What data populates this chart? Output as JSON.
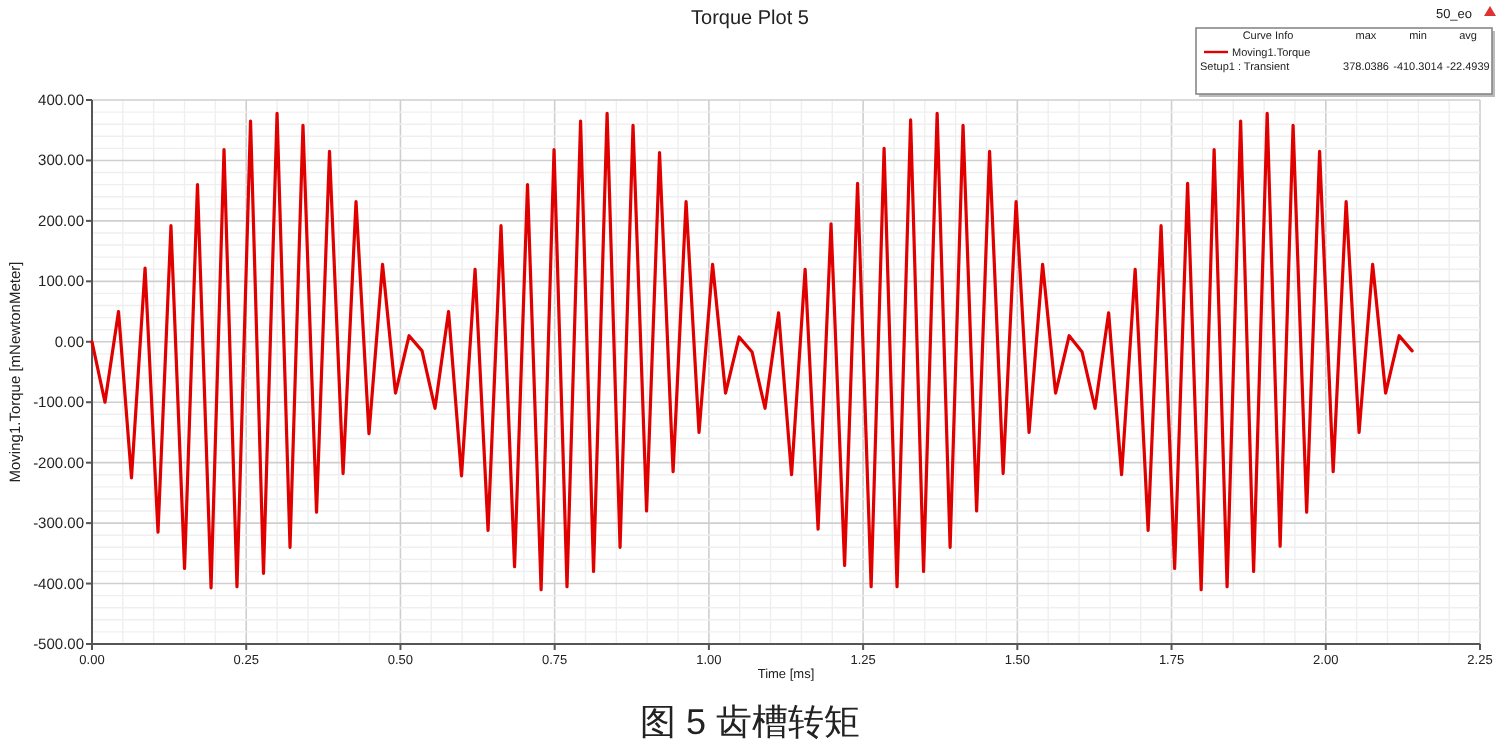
{
  "chart_data": {
    "type": "line",
    "title": "Torque Plot 5",
    "xlabel": "Time [ms]",
    "ylabel": "Moving1.Torque [mNewtonMeter]",
    "xlim": [
      0,
      2.25
    ],
    "ylim": [
      -500,
      400
    ],
    "xticks": [
      {
        "value": 0,
        "label": "0.00"
      },
      {
        "value": 0.25,
        "label": "0.25"
      },
      {
        "value": 0.5,
        "label": "0.50"
      },
      {
        "value": 0.75,
        "label": "0.75"
      },
      {
        "value": 1,
        "label": "1.00"
      },
      {
        "value": 1.25,
        "label": "1.25"
      },
      {
        "value": 1.5,
        "label": "1.50"
      },
      {
        "value": 1.75,
        "label": "1.75"
      },
      {
        "value": 2,
        "label": "2.00"
      },
      {
        "value": 2.25,
        "label": "2.25"
      }
    ],
    "yticks": [
      {
        "value": -500,
        "label": "-500.00"
      },
      {
        "value": -400,
        "label": "-400.00"
      },
      {
        "value": -300,
        "label": "-300.00"
      },
      {
        "value": -200,
        "label": "-200.00"
      },
      {
        "value": -100,
        "label": "-100.00"
      },
      {
        "value": 0,
        "label": "0.00"
      },
      {
        "value": 100,
        "label": "100.00"
      },
      {
        "value": 200,
        "label": "200.00"
      },
      {
        "value": 300,
        "label": "300.00"
      },
      {
        "value": 400,
        "label": "400.00"
      }
    ],
    "grid": true,
    "legend": "top right",
    "marker": "none",
    "line_style": "solid",
    "annotations": [
      "50_eo",
      "Curve Info",
      "max",
      "min",
      "avg",
      "Setup1 : Transient",
      "378.0386",
      "-410.3014",
      "-22.4939",
      "图 5 齿槽转矩"
    ],
    "series": [
      {
        "name": "Moving1.Torque",
        "color": "#e00000",
        "x": [
          0,
          0.021,
          0.043,
          0.064,
          0.086,
          0.107,
          0.128,
          0.15,
          0.171,
          0.193,
          0.214,
          0.235,
          0.257,
          0.278,
          0.3,
          0.321,
          0.342,
          0.364,
          0.385,
          0.407,
          0.428,
          0.449,
          0.471,
          0.492,
          0.514,
          0.535,
          0.556,
          0.578,
          0.599,
          0.621,
          0.642,
          0.663,
          0.685,
          0.706,
          0.728,
          0.749,
          0.77,
          0.792,
          0.813,
          0.835,
          0.856,
          0.877,
          0.899,
          0.92,
          0.942,
          0.963,
          0.984,
          1.006,
          1.027,
          1.049,
          1.07,
          1.091,
          1.113,
          1.134,
          1.156,
          1.177,
          1.198,
          1.22,
          1.241,
          1.263,
          1.284,
          1.305,
          1.327,
          1.348,
          1.37,
          1.391,
          1.412,
          1.434,
          1.455,
          1.477,
          1.498,
          1.519,
          1.541,
          1.562,
          1.584,
          1.605,
          1.626,
          1.648,
          1.669,
          1.691,
          1.712,
          1.733,
          1.755,
          1.776,
          1.798,
          1.819,
          1.84,
          1.862,
          1.883,
          1.905,
          1.926,
          1.947,
          1.969,
          1.99,
          2.012,
          2.033,
          2.054,
          2.076,
          2.097,
          2.119,
          2.14
        ],
        "values": [
          0,
          -100,
          50,
          -225,
          122,
          -315,
          192,
          -375,
          260,
          -407,
          318,
          -405,
          365,
          -383,
          378,
          -340,
          358,
          -282,
          315,
          -218,
          232,
          -152,
          128,
          -85,
          10,
          -15,
          -110,
          50,
          -222,
          120,
          -312,
          192,
          -372,
          260,
          -410,
          318,
          -405,
          365,
          -380,
          378,
          -340,
          358,
          -280,
          313,
          -215,
          232,
          -150,
          128,
          -85,
          8,
          -17,
          -110,
          48,
          -220,
          120,
          -310,
          195,
          -370,
          262,
          -405,
          320,
          -405,
          367,
          -380,
          378,
          -340,
          358,
          -280,
          315,
          -218,
          232,
          -150,
          128,
          -85,
          10,
          -17,
          -110,
          48,
          -220,
          120,
          -312,
          192,
          -375,
          262,
          -410,
          318,
          -405,
          365,
          -380,
          378,
          -338,
          358,
          -282,
          315,
          -215,
          232,
          -150,
          128,
          -85,
          10,
          -15
        ]
      }
    ]
  }
}
